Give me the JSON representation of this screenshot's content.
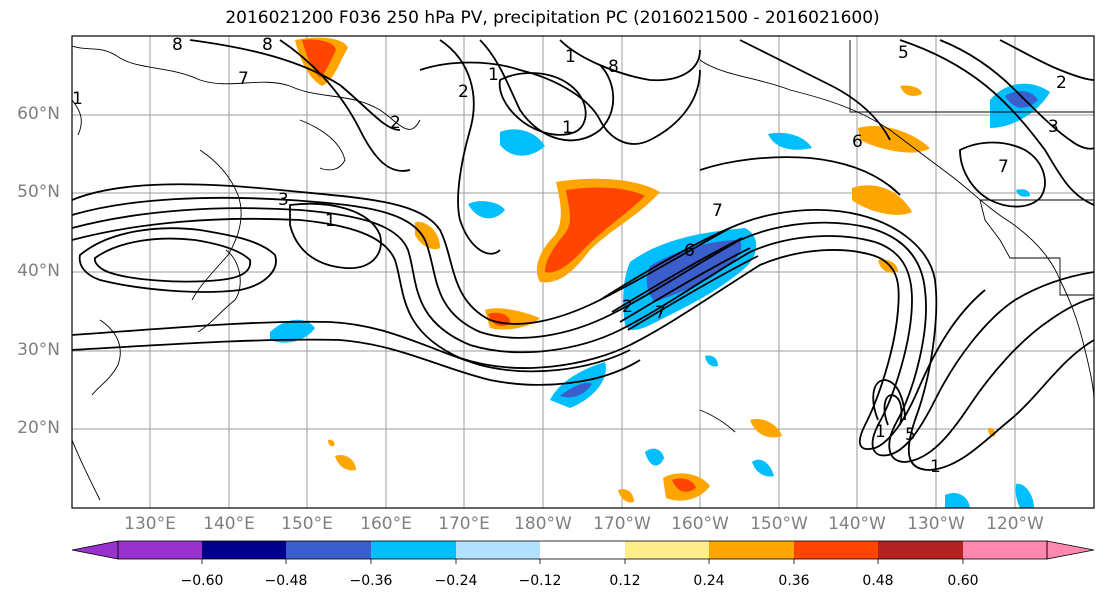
{
  "title": "2016021200 F036 250 hPa PV, precipitation PC (2016021500 - 2016021600)",
  "lat_labels": [
    "60°N",
    "50°N",
    "40°N",
    "30°N",
    "20°N"
  ],
  "lon_labels": [
    "130°E",
    "140°E",
    "150°E",
    "160°E",
    "170°E",
    "180°W",
    "170°W",
    "160°W",
    "150°W",
    "140°W",
    "130°W",
    "120°W"
  ],
  "colorbar": {
    "ticks": [
      "−0.60",
      "−0.48",
      "−0.36",
      "−0.24",
      "−0.12",
      "0.12",
      "0.24",
      "0.36",
      "0.48",
      "0.60"
    ],
    "colors": [
      "#9932cc",
      "#00008b",
      "#3a5fcd",
      "#00bfff",
      "#b2e2ff",
      "#ffffff",
      "#ffec8b",
      "#ffa500",
      "#ff4500",
      "#b22222",
      "#ff88b0"
    ]
  },
  "contour_labels": [
    "8",
    "8",
    "7",
    "1",
    "8",
    "2",
    "1",
    "2",
    "1",
    "5",
    "2",
    "3",
    "6",
    "7",
    "3",
    "1",
    "7",
    "6",
    "2",
    "7",
    "1",
    "1",
    "5",
    "1"
  ]
}
